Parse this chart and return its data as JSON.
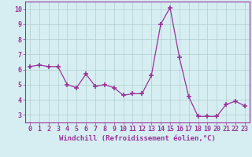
{
  "x": [
    0,
    1,
    2,
    3,
    4,
    5,
    6,
    7,
    8,
    9,
    10,
    11,
    12,
    13,
    14,
    15,
    16,
    17,
    18,
    19,
    20,
    21,
    22,
    23
  ],
  "y": [
    6.2,
    6.3,
    6.2,
    6.2,
    5.0,
    4.8,
    5.7,
    4.9,
    5.0,
    4.8,
    4.3,
    4.4,
    4.4,
    5.6,
    9.0,
    10.1,
    6.8,
    4.2,
    2.9,
    2.9,
    2.9,
    3.7,
    3.9,
    3.6
  ],
  "line_color": "#993399",
  "marker": "+",
  "marker_size": 4,
  "marker_linewidth": 1.2,
  "background_color": "#d6eef2",
  "grid_color": "#b0cece",
  "xlabel": "Windchill (Refroidissement éolien,°C)",
  "xlabel_fontsize": 6.5,
  "xlim": [
    -0.5,
    23.5
  ],
  "ylim": [
    2.5,
    10.5
  ],
  "yticks": [
    3,
    4,
    5,
    6,
    7,
    8,
    9,
    10
  ],
  "xticks": [
    0,
    1,
    2,
    3,
    4,
    5,
    6,
    7,
    8,
    9,
    10,
    11,
    12,
    13,
    14,
    15,
    16,
    17,
    18,
    19,
    20,
    21,
    22,
    23
  ],
  "tick_fontsize": 6,
  "tick_color": "#993399",
  "spine_color": "#993399",
  "line_width": 0.9
}
